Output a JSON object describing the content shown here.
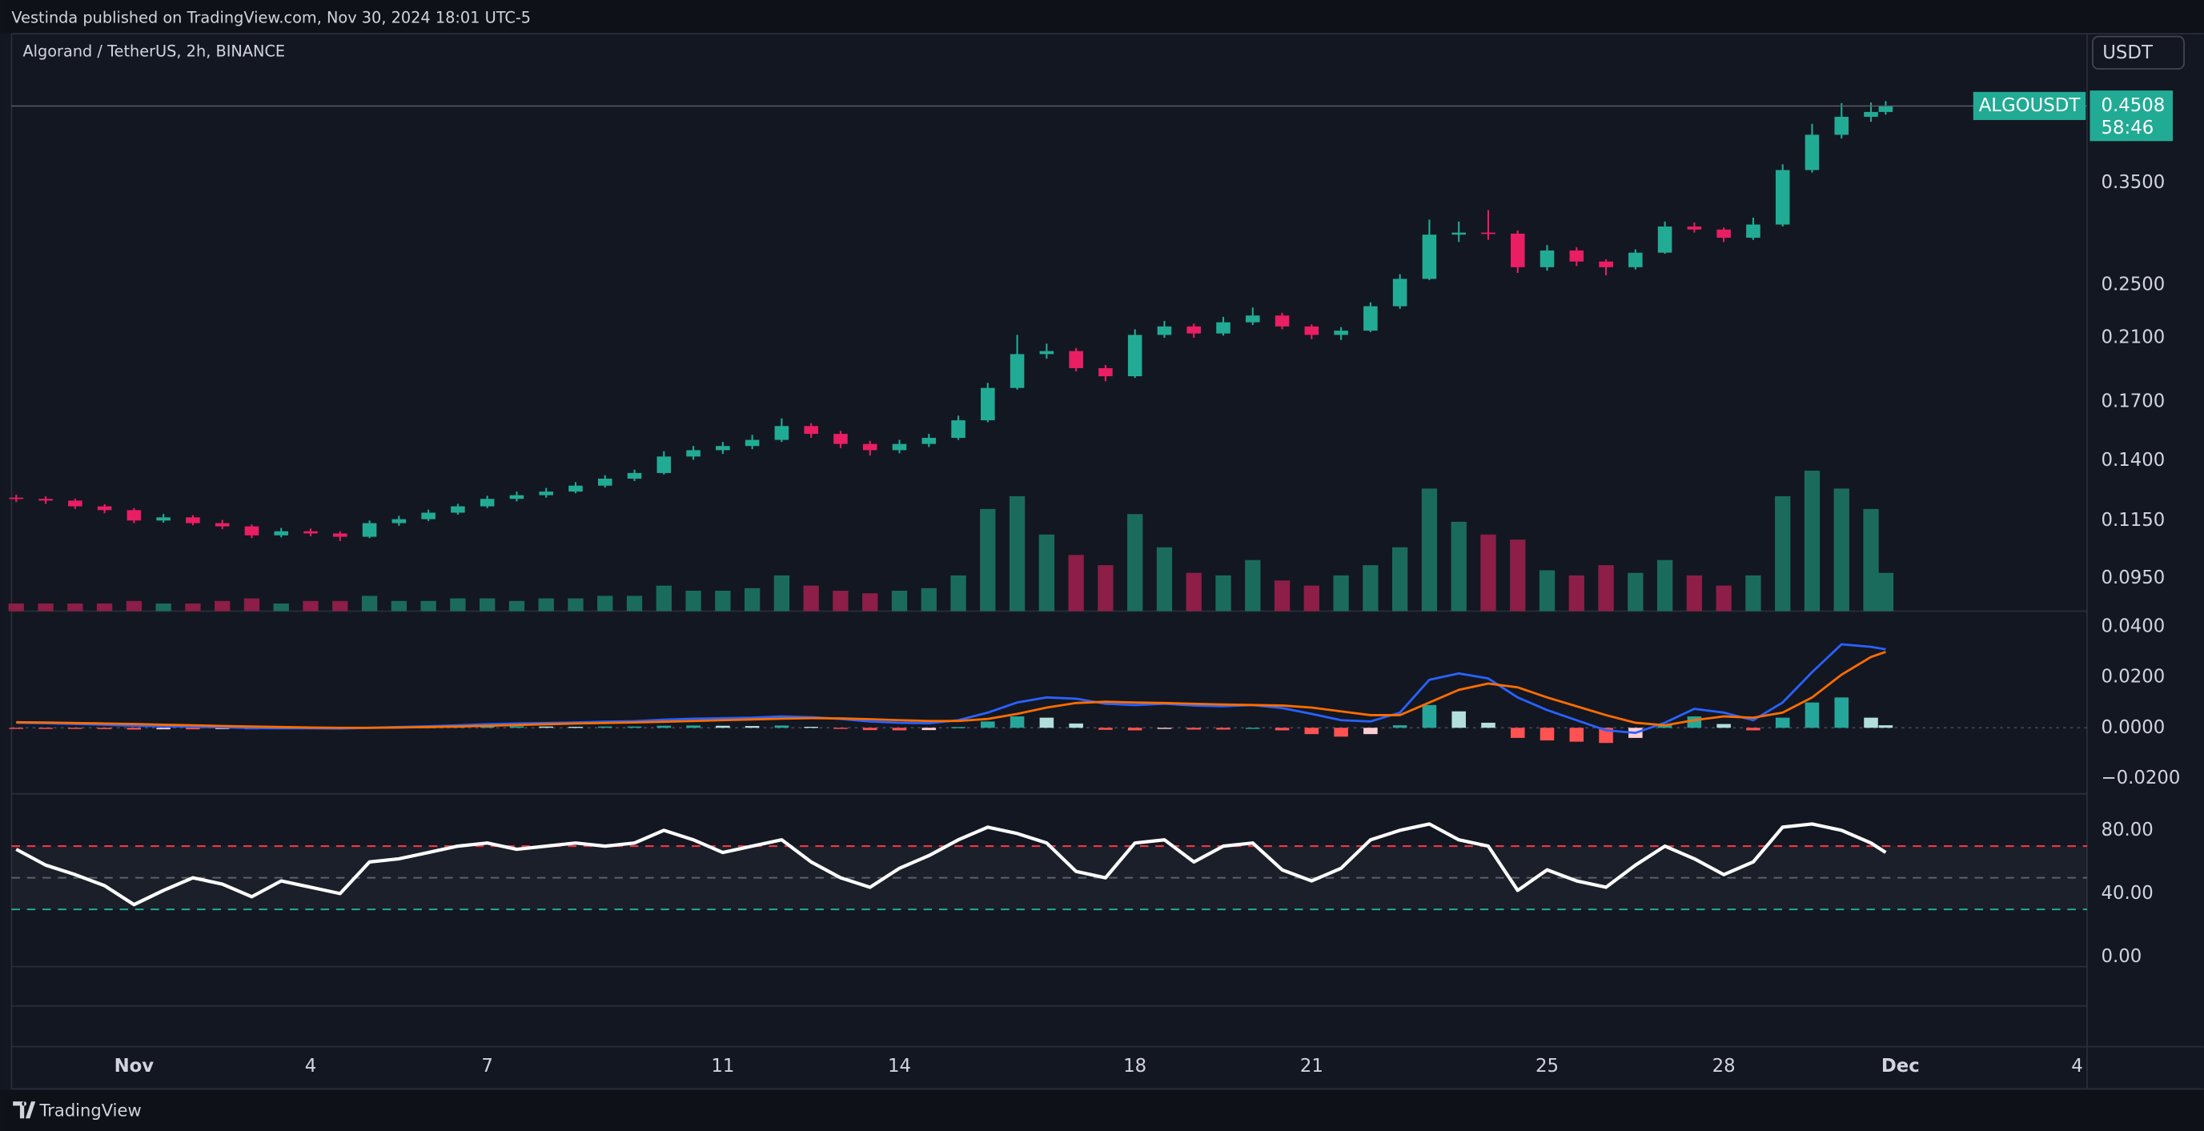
{
  "header": {
    "published": "Vestinda published on TradingView.com, Nov 30, 2024 18:01 UTC-5",
    "symbol_title": "Algorand / TetherUS, 2h, BINANCE",
    "currency_button": "USDT"
  },
  "footer": {
    "brand": "TradingView"
  },
  "chart_data": [
    {
      "type": "candlestick",
      "symbol": "ALGOUSDT",
      "countdown": "58:46",
      "log_scale": true,
      "grid": false,
      "up_color": "#22ab94",
      "down_color": "#e91e63",
      "volume_up_color": "#1b6b5c",
      "volume_down_color": "#8c1e47",
      "x": [
        -1,
        -0.5,
        0,
        0.5,
        1,
        1.5,
        2,
        2.5,
        3,
        3.5,
        4,
        4.5,
        5,
        5.5,
        6,
        6.5,
        7,
        7.5,
        8,
        8.5,
        9,
        9.5,
        10,
        10.5,
        11,
        11.5,
        12,
        12.5,
        13,
        13.5,
        14,
        14.5,
        15,
        15.5,
        16,
        16.5,
        17,
        17.5,
        18,
        18.5,
        19,
        19.5,
        20,
        20.5,
        21,
        21.5,
        22,
        22.5,
        23,
        23.5,
        24,
        24.5,
        25,
        25.5,
        26,
        26.5,
        27,
        27.5,
        28,
        28.5,
        29,
        29.5,
        30,
        30.5,
        30.75
      ],
      "open": [
        0.124,
        0.1235,
        0.1228,
        0.1205,
        0.119,
        0.115,
        0.1162,
        0.114,
        0.1128,
        0.1095,
        0.111,
        0.1102,
        0.109,
        0.114,
        0.1155,
        0.118,
        0.1205,
        0.1235,
        0.125,
        0.1265,
        0.129,
        0.132,
        0.1345,
        0.142,
        0.145,
        0.147,
        0.15,
        0.157,
        0.153,
        0.148,
        0.145,
        0.148,
        0.151,
        0.16,
        0.178,
        0.199,
        0.201,
        0.19,
        0.185,
        0.212,
        0.218,
        0.213,
        0.221,
        0.226,
        0.218,
        0.212,
        0.215,
        0.233,
        0.255,
        0.295,
        0.297,
        0.296,
        0.265,
        0.28,
        0.27,
        0.265,
        0.278,
        0.303,
        0.3,
        0.292,
        0.305,
        0.365,
        0.41,
        0.435,
        0.442
      ],
      "high": [
        0.1252,
        0.1245,
        0.1236,
        0.1214,
        0.1198,
        0.1175,
        0.117,
        0.1152,
        0.1135,
        0.1122,
        0.112,
        0.111,
        0.115,
        0.1168,
        0.1192,
        0.1215,
        0.1248,
        0.1265,
        0.128,
        0.1305,
        0.1335,
        0.136,
        0.1445,
        0.147,
        0.149,
        0.1525,
        0.161,
        0.1585,
        0.1545,
        0.1495,
        0.15,
        0.153,
        0.1625,
        0.181,
        0.212,
        0.206,
        0.203,
        0.192,
        0.216,
        0.222,
        0.22,
        0.225,
        0.232,
        0.228,
        0.2195,
        0.2175,
        0.236,
        0.259,
        0.31,
        0.308,
        0.32,
        0.299,
        0.285,
        0.283,
        0.272,
        0.281,
        0.308,
        0.307,
        0.302,
        0.312,
        0.372,
        0.425,
        0.455,
        0.456,
        0.458
      ],
      "low": [
        0.1222,
        0.1215,
        0.1195,
        0.1178,
        0.114,
        0.1142,
        0.1132,
        0.1118,
        0.1085,
        0.1088,
        0.1092,
        0.1075,
        0.1085,
        0.113,
        0.1148,
        0.1172,
        0.1198,
        0.1225,
        0.124,
        0.1258,
        0.1282,
        0.131,
        0.1338,
        0.1405,
        0.1432,
        0.1455,
        0.149,
        0.151,
        0.146,
        0.1425,
        0.1435,
        0.1465,
        0.15,
        0.159,
        0.177,
        0.196,
        0.188,
        0.182,
        0.184,
        0.21,
        0.21,
        0.2115,
        0.219,
        0.216,
        0.209,
        0.2085,
        0.214,
        0.231,
        0.254,
        0.288,
        0.29,
        0.26,
        0.262,
        0.266,
        0.258,
        0.263,
        0.277,
        0.297,
        0.288,
        0.29,
        0.303,
        0.362,
        0.405,
        0.428,
        0.438
      ],
      "close": [
        0.1235,
        0.1228,
        0.1205,
        0.119,
        0.115,
        0.1162,
        0.114,
        0.1128,
        0.1095,
        0.111,
        0.1102,
        0.109,
        0.114,
        0.1155,
        0.118,
        0.1205,
        0.1235,
        0.125,
        0.1265,
        0.129,
        0.132,
        0.1345,
        0.142,
        0.145,
        0.147,
        0.15,
        0.157,
        0.153,
        0.148,
        0.145,
        0.148,
        0.151,
        0.16,
        0.178,
        0.199,
        0.201,
        0.19,
        0.185,
        0.212,
        0.218,
        0.213,
        0.221,
        0.226,
        0.218,
        0.212,
        0.215,
        0.233,
        0.255,
        0.295,
        0.297,
        0.296,
        0.265,
        0.28,
        0.27,
        0.265,
        0.278,
        0.303,
        0.3,
        0.292,
        0.305,
        0.365,
        0.41,
        0.435,
        0.442,
        0.4508
      ],
      "volume": [
        3,
        3,
        3,
        3,
        4,
        3,
        3,
        4,
        5,
        3,
        4,
        4,
        6,
        4,
        4,
        5,
        5,
        4,
        5,
        5,
        6,
        6,
        10,
        8,
        8,
        9,
        14,
        10,
        8,
        7,
        8,
        9,
        14,
        40,
        45,
        30,
        22,
        18,
        38,
        25,
        15,
        14,
        20,
        12,
        10,
        14,
        18,
        25,
        48,
        35,
        30,
        28,
        16,
        14,
        18,
        15,
        20,
        14,
        10,
        14,
        45,
        55,
        48,
        40,
        15
      ],
      "ylim": [
        0.0853,
        0.572
      ],
      "yticks": [
        {
          "value": 0.35,
          "label": "0.3500"
        },
        {
          "value": 0.25,
          "label": "0.2500"
        },
        {
          "value": 0.21,
          "label": "0.2100"
        },
        {
          "value": 0.17,
          "label": "0.1700"
        },
        {
          "value": 0.14,
          "label": "0.1400"
        },
        {
          "value": 0.115,
          "label": "0.1150"
        },
        {
          "value": 0.095,
          "label": "0.0950"
        }
      ],
      "xlim": [
        -1.08,
        34.17
      ],
      "xticks": [
        {
          "value": 1,
          "label": "Nov"
        },
        4,
        7,
        11,
        14,
        18,
        21,
        25,
        28,
        {
          "value": 31,
          "label": "Dec"
        },
        {
          "value": 34,
          "label": "4"
        }
      ]
    },
    {
      "type": "macd",
      "series": [
        {
          "color": "#2962ff",
          "values": [
            0.002,
            0.0018,
            0.0015,
            0.0012,
            0.0008,
            0.0006,
            0.0004,
            0.0002,
            -0.0001,
            -0.0002,
            -0.0002,
            -0.0003,
            0.0,
            0.0003,
            0.0006,
            0.001,
            0.0014,
            0.0017,
            0.0019,
            0.0021,
            0.0024,
            0.0026,
            0.0032,
            0.0036,
            0.0038,
            0.004,
            0.0045,
            0.0042,
            0.0035,
            0.0025,
            0.002,
            0.0018,
            0.003,
            0.006,
            0.01,
            0.012,
            0.0115,
            0.0095,
            0.009,
            0.0095,
            0.0088,
            0.0085,
            0.009,
            0.0078,
            0.0055,
            0.003,
            0.0025,
            0.006,
            0.019,
            0.0215,
            0.0195,
            0.012,
            0.007,
            0.003,
            -0.001,
            -0.002,
            0.002,
            0.0075,
            0.006,
            0.003,
            0.01,
            0.022,
            0.033,
            0.032,
            0.031
          ]
        },
        {
          "color": "#ff6d00",
          "values": [
            0.0022,
            0.0021,
            0.0019,
            0.0017,
            0.0015,
            0.0012,
            0.001,
            0.0007,
            0.0005,
            0.0003,
            0.0001,
            0.0,
            0.0,
            0.0001,
            0.0003,
            0.0005,
            0.0008,
            0.0011,
            0.0014,
            0.0017,
            0.0019,
            0.0021,
            0.0024,
            0.0027,
            0.003,
            0.0033,
            0.0036,
            0.0038,
            0.0037,
            0.0034,
            0.003,
            0.0027,
            0.0027,
            0.0035,
            0.0055,
            0.008,
            0.0098,
            0.0103,
            0.01,
            0.0098,
            0.0095,
            0.0092,
            0.009,
            0.0088,
            0.008,
            0.0065,
            0.005,
            0.005,
            0.01,
            0.015,
            0.0175,
            0.016,
            0.012,
            0.0085,
            0.005,
            0.002,
            0.001,
            0.003,
            0.0045,
            0.004,
            0.006,
            0.012,
            0.021,
            0.028,
            0.03
          ]
        }
      ],
      "histogram": {
        "colors": {
          "positive_rising": "#26a69a",
          "positive_falling": "#b2dfdb",
          "negative_falling": "#ff5252",
          "negative_rising": "#ffcdd2"
        },
        "values": [
          -0.0002,
          -0.0003,
          -0.0004,
          -0.0005,
          -0.0007,
          -0.0006,
          -0.0006,
          -0.0005,
          -0.0006,
          -0.0005,
          -0.0003,
          -0.0003,
          0.0,
          0.0002,
          0.0003,
          0.0005,
          0.0006,
          0.0006,
          0.0005,
          0.0004,
          0.0005,
          0.0005,
          0.0008,
          0.0009,
          0.0008,
          0.0007,
          0.0009,
          0.0004,
          -0.0002,
          -0.0009,
          -0.001,
          -0.0009,
          0.0003,
          0.0025,
          0.0045,
          0.004,
          0.0017,
          -0.0008,
          -0.001,
          -0.0003,
          -0.0007,
          -0.0007,
          0.0,
          -0.001,
          -0.0025,
          -0.0035,
          -0.0025,
          0.001,
          0.009,
          0.0065,
          0.002,
          -0.004,
          -0.005,
          -0.0055,
          -0.006,
          -0.004,
          0.001,
          0.0045,
          0.0015,
          -0.001,
          0.004,
          0.01,
          0.012,
          0.004,
          0.001
        ]
      },
      "zero_line": true,
      "ylim": [
        -0.0261,
        0.045
      ],
      "yticks": [
        {
          "value": 0.04,
          "label": "0.0400"
        },
        {
          "value": 0.02,
          "label": "0.0200"
        },
        {
          "value": 0,
          "label": "0.0000"
        },
        {
          "value": -0.02,
          "label": "−0.0200"
        }
      ]
    },
    {
      "type": "rsi",
      "color": "#ffffff",
      "values": [
        68,
        58,
        52,
        45,
        33,
        42,
        50,
        46,
        38,
        48,
        44,
        40,
        60,
        62,
        66,
        70,
        72,
        68,
        70,
        72,
        70,
        72,
        80,
        74,
        66,
        70,
        74,
        60,
        50,
        44,
        56,
        64,
        74,
        82,
        78,
        72,
        54,
        50,
        72,
        74,
        60,
        70,
        72,
        55,
        48,
        56,
        74,
        80,
        84,
        74,
        70,
        42,
        55,
        48,
        44,
        58,
        70,
        62,
        52,
        60,
        82,
        84,
        80,
        72,
        66
      ],
      "levels": [
        {
          "value": 70,
          "color": "#f23645"
        },
        {
          "value": 50,
          "color": "#5d606b"
        },
        {
          "value": 30,
          "color": "#22ab94"
        }
      ],
      "ylim": [
        -6.2,
        103.1
      ],
      "yticks": [
        {
          "value": 80,
          "label": "80.00"
        },
        {
          "value": 40,
          "label": "40.00"
        },
        {
          "value": 0,
          "label": "0.00"
        }
      ]
    }
  ]
}
